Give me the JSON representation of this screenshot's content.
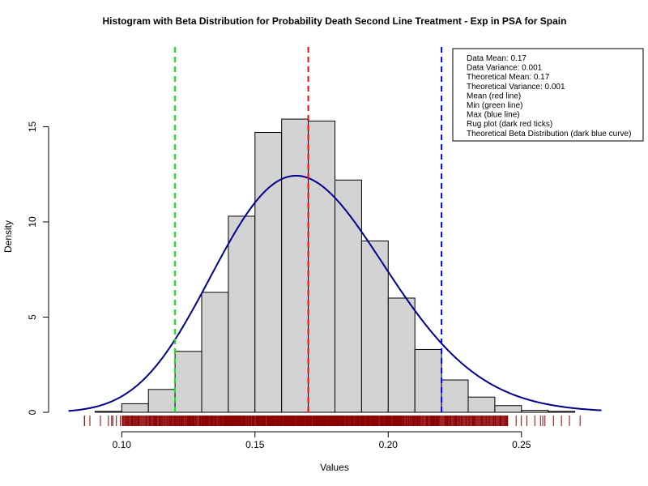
{
  "chart_data": {
    "type": "histogram",
    "title": "Histogram with Beta Distribution for Probability Death Second Line Treatment - Exp in PSA for Spain",
    "xlabel": "Values",
    "ylabel": "Density",
    "xlim": [
      0.08,
      0.28
    ],
    "ylim": [
      0,
      15.7
    ],
    "x_ticks": [
      0.1,
      0.15,
      0.2,
      0.25
    ],
    "x_tick_labels": [
      "0.10",
      "0.15",
      "0.20",
      "0.25"
    ],
    "y_ticks": [
      0,
      5,
      10,
      15
    ],
    "y_tick_labels": [
      "0",
      "5",
      "10",
      "15"
    ],
    "bins": [
      {
        "x0": 0.09,
        "x1": 0.1,
        "density": 0.05
      },
      {
        "x0": 0.1,
        "x1": 0.11,
        "density": 0.45
      },
      {
        "x0": 0.11,
        "x1": 0.12,
        "density": 1.2
      },
      {
        "x0": 0.12,
        "x1": 0.13,
        "density": 3.2
      },
      {
        "x0": 0.13,
        "x1": 0.14,
        "density": 6.3
      },
      {
        "x0": 0.14,
        "x1": 0.15,
        "density": 10.3
      },
      {
        "x0": 0.15,
        "x1": 0.16,
        "density": 14.7
      },
      {
        "x0": 0.16,
        "x1": 0.17,
        "density": 15.4
      },
      {
        "x0": 0.17,
        "x1": 0.18,
        "density": 15.3
      },
      {
        "x0": 0.18,
        "x1": 0.19,
        "density": 12.2
      },
      {
        "x0": 0.19,
        "x1": 0.2,
        "density": 9.0
      },
      {
        "x0": 0.2,
        "x1": 0.21,
        "density": 6.0
      },
      {
        "x0": 0.21,
        "x1": 0.22,
        "density": 3.3
      },
      {
        "x0": 0.22,
        "x1": 0.23,
        "density": 1.7
      },
      {
        "x0": 0.23,
        "x1": 0.24,
        "density": 0.8
      },
      {
        "x0": 0.24,
        "x1": 0.25,
        "density": 0.35
      },
      {
        "x0": 0.25,
        "x1": 0.26,
        "density": 0.1
      },
      {
        "x0": 0.26,
        "x1": 0.27,
        "density": 0.05
      }
    ],
    "beta_curve": {
      "alpha": 23,
      "beta": 112,
      "x_range": [
        0.08,
        0.28
      ],
      "color": "#00008B"
    },
    "vlines": [
      {
        "x": 0.12,
        "color": "#00EE00"
      },
      {
        "x": 0.17,
        "color": "#FF0000"
      },
      {
        "x": 0.22,
        "color": "#0000FF"
      }
    ],
    "rug": {
      "color": "#8B0000",
      "range": [
        0.086,
        0.272
      ],
      "dense_range": [
        0.1,
        0.245
      ]
    },
    "legend": {
      "position": "top-right",
      "entries": [
        "Data Mean:  0.17",
        "Data Variance:  0.001",
        "Theoretical Mean:  0.17",
        "Theoretical Variance:  0.001",
        "Mean (red line)",
        "Min (green line)",
        "Max (blue line)",
        "Rug plot (dark red ticks)",
        "Theoretical Beta Distribution (dark blue curve)"
      ]
    },
    "colors": {
      "bar_fill": "#D3D3D3",
      "bar_stroke": "#000000"
    }
  }
}
